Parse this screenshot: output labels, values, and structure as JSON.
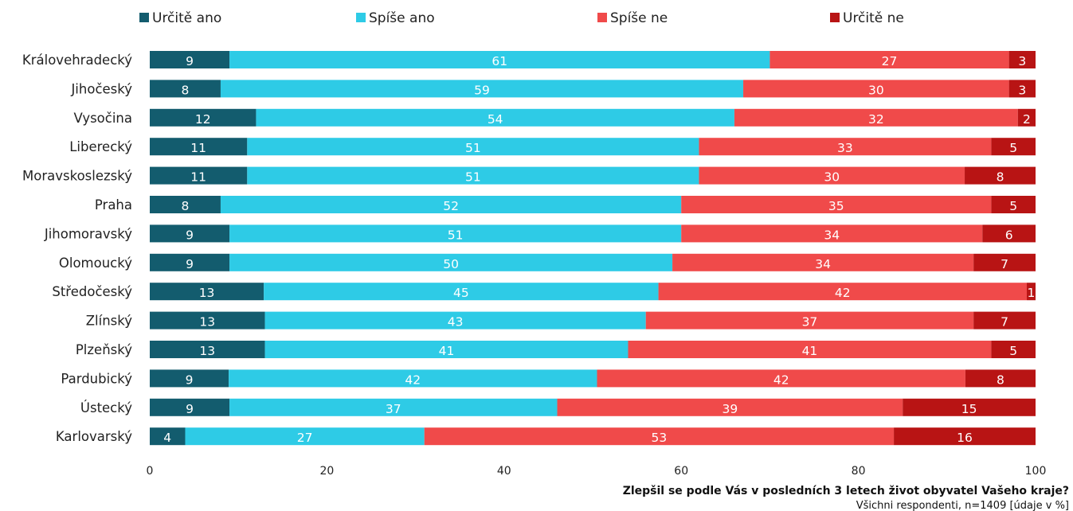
{
  "chart_data": {
    "type": "bar",
    "orientation": "horizontal",
    "stacked": true,
    "categories": [
      "Královehradecký",
      "Jihočeský",
      "Vysočina",
      "Liberecký",
      "Moravskoslezský",
      "Praha",
      "Jihomoravský",
      "Olomoucký",
      "Středočeský",
      "Zlínský",
      "Plzeňský",
      "Pardubický",
      "Ústecký",
      "Karlovarský"
    ],
    "series": [
      {
        "name": "Určitě ano",
        "color": "#135c6e",
        "values": [
          9,
          8,
          12,
          11,
          11,
          8,
          9,
          9,
          13,
          13,
          13,
          9,
          9,
          4
        ]
      },
      {
        "name": "Spíše ano",
        "color": "#2ecbe6",
        "values": [
          61,
          59,
          54,
          51,
          51,
          52,
          51,
          50,
          45,
          43,
          41,
          42,
          37,
          27
        ]
      },
      {
        "name": "Spíše ne",
        "color": "#f04a4a",
        "values": [
          27,
          30,
          32,
          33,
          30,
          35,
          34,
          34,
          42,
          37,
          41,
          42,
          39,
          53
        ]
      },
      {
        "name": "Určitě ne",
        "color": "#b81414",
        "values": [
          3,
          3,
          2,
          5,
          8,
          5,
          6,
          7,
          1,
          7,
          5,
          8,
          15,
          16
        ]
      }
    ],
    "xlim": [
      0,
      100
    ],
    "x_ticks": [
      "0",
      "20",
      "40",
      "60",
      "80",
      "100"
    ],
    "legend_position": "top",
    "grid": false,
    "question": "Zlepšil se podle Vás v posledních 3 letech život obyvatel Vašeho kraje?",
    "subtitle": "Všichni respondenti, n=1409 [údaje v %]"
  }
}
